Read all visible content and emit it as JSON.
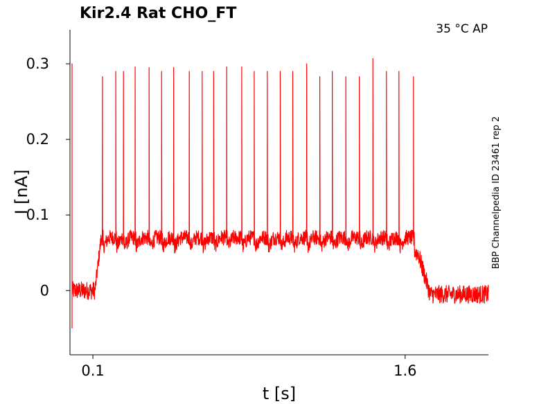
{
  "chart_data": {
    "type": "line",
    "title": "Kir2.4  Rat  CHO_FT",
    "condition": "35 °C  AP",
    "side_label": "BBP Channelpedia ID 23461 rep 2",
    "xlabel": "t [s]",
    "ylabel": "I [nA]",
    "xlim": [
      -0.01,
      2.0
    ],
    "ylim": [
      -0.085,
      0.345
    ],
    "x_ticks": [
      {
        "value": 0.1,
        "label": "0.1"
      },
      {
        "value": 1.6,
        "label": "1.6"
      }
    ],
    "y_ticks": [
      {
        "value": 0.0,
        "label": "0"
      },
      {
        "value": 0.1,
        "label": "0.1"
      },
      {
        "value": 0.2,
        "label": "0.2"
      },
      {
        "value": 0.3,
        "label": "0.3"
      }
    ],
    "grid": false,
    "series": [
      {
        "color": "#ff0000",
        "segments": [
          {
            "description": "baseline",
            "x_start": 0.0,
            "x_end": 0.11,
            "mean": 0.0,
            "noise": 0.012
          },
          {
            "description": "plateau",
            "x_start": 0.14,
            "x_end": 1.64,
            "mean": 0.07,
            "noise": 0.01
          },
          {
            "description": "return",
            "x_start": 1.72,
            "x_end": 2.0,
            "mean": -0.005,
            "noise": 0.012
          }
        ],
        "initial_transient": {
          "x": 0.0,
          "min": -0.05,
          "max": 0.3
        },
        "spikes": [
          {
            "t": 0.146,
            "peak": 0.283
          },
          {
            "t": 0.21,
            "peak": 0.29
          },
          {
            "t": 0.247,
            "peak": 0.29
          },
          {
            "t": 0.303,
            "peak": 0.296
          },
          {
            "t": 0.37,
            "peak": 0.295
          },
          {
            "t": 0.43,
            "peak": 0.29
          },
          {
            "t": 0.488,
            "peak": 0.295
          },
          {
            "t": 0.563,
            "peak": 0.29
          },
          {
            "t": 0.625,
            "peak": 0.29
          },
          {
            "t": 0.68,
            "peak": 0.29
          },
          {
            "t": 0.743,
            "peak": 0.296
          },
          {
            "t": 0.815,
            "peak": 0.296
          },
          {
            "t": 0.875,
            "peak": 0.29
          },
          {
            "t": 0.938,
            "peak": 0.29
          },
          {
            "t": 1.0,
            "peak": 0.29
          },
          {
            "t": 1.06,
            "peak": 0.29
          },
          {
            "t": 1.127,
            "peak": 0.3
          },
          {
            "t": 1.19,
            "peak": 0.283
          },
          {
            "t": 1.25,
            "peak": 0.29
          },
          {
            "t": 1.315,
            "peak": 0.283
          },
          {
            "t": 1.38,
            "peak": 0.283
          },
          {
            "t": 1.445,
            "peak": 0.307
          },
          {
            "t": 1.51,
            "peak": 0.29
          },
          {
            "t": 1.57,
            "peak": 0.29
          },
          {
            "t": 1.64,
            "peak": 0.283
          }
        ]
      }
    ]
  }
}
